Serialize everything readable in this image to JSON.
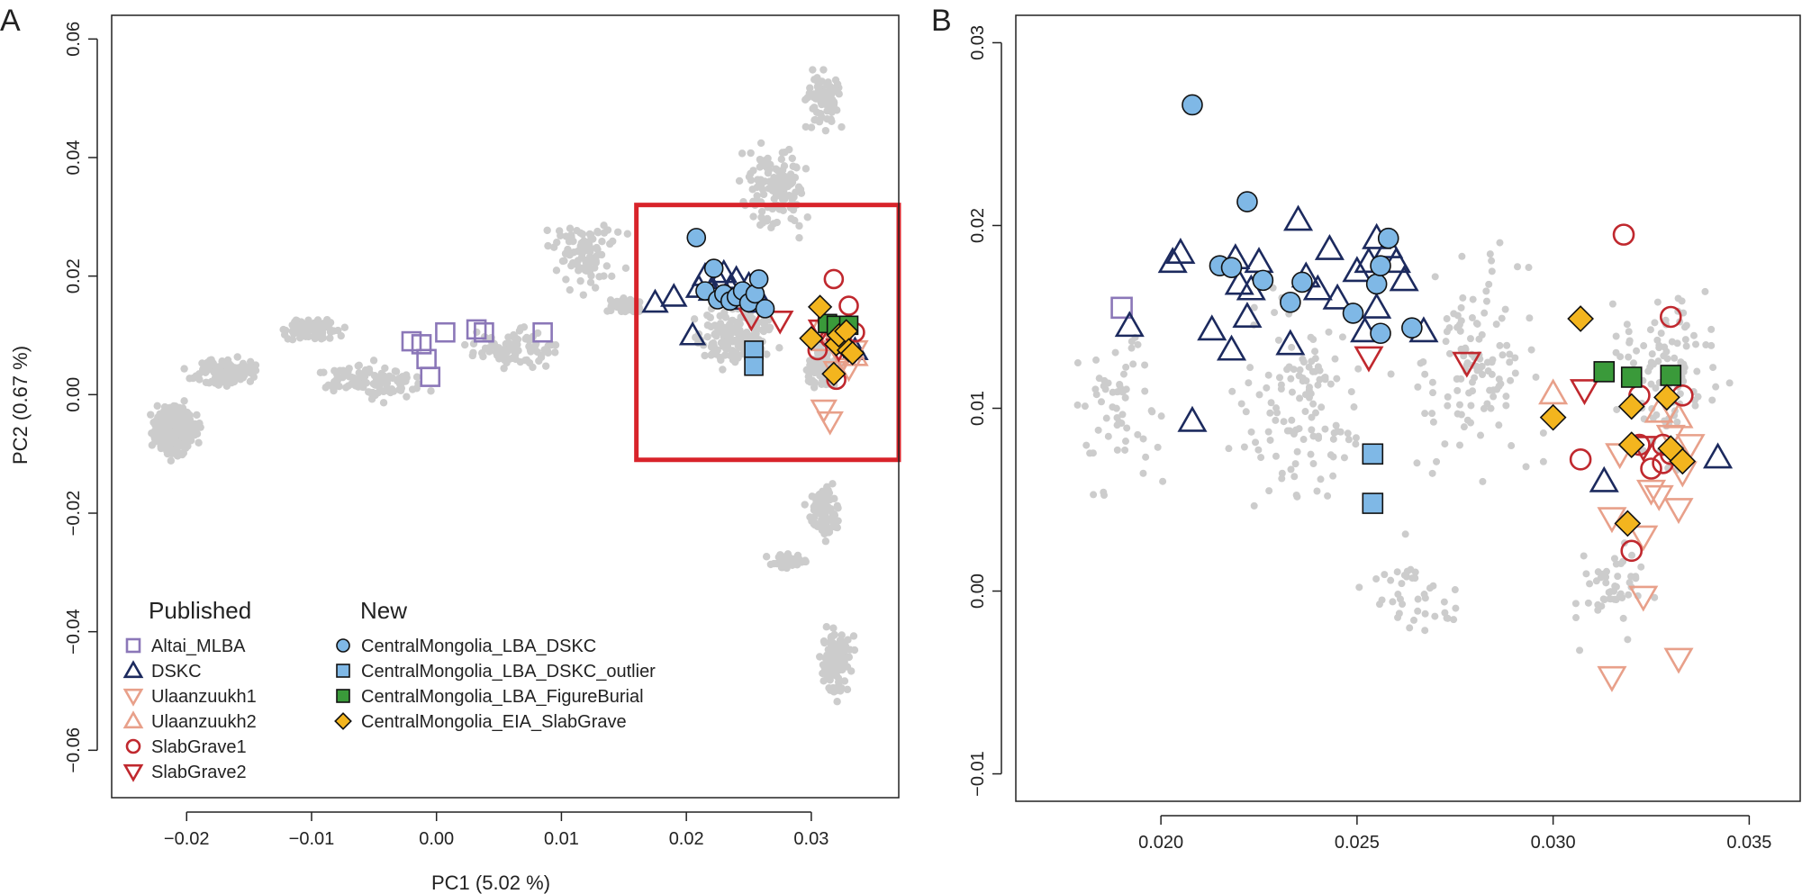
{
  "chart_data": [
    {
      "type": "scatter",
      "panel": "A",
      "xlabel": "PC1 (5.02 %)",
      "ylabel": "PC2 (0.67 %)",
      "xlim": [
        -0.026,
        0.037
      ],
      "ylim": [
        -0.068,
        0.064
      ],
      "xticks": [
        -0.02,
        -0.01,
        0.0,
        0.01,
        0.02,
        0.03
      ],
      "xtick_labels": [
        "−0.02",
        "−0.01",
        "0.00",
        "0.01",
        "0.02",
        "0.03"
      ],
      "yticks": [
        -0.06,
        -0.04,
        -0.02,
        0.0,
        0.02,
        0.04,
        0.06
      ],
      "ytick_labels": [
        "−0.06",
        "−0.04",
        "−0.02",
        "0.00",
        "0.02",
        "0.04",
        "0.06"
      ],
      "zoom_box": {
        "x": [
          0.016,
          0.037
        ],
        "y": [
          -0.011,
          0.032
        ]
      },
      "legend": {
        "published_title": "Published",
        "new_title": "New",
        "published": [
          {
            "label": "Altai_MLBA",
            "marker": "square-open",
            "color": "#8b77b8"
          },
          {
            "label": "DSKC",
            "marker": "triangle-up-open",
            "color": "#1c2a5e"
          },
          {
            "label": "Ulaanzuukh1",
            "marker": "triangle-down-open",
            "color": "#e8a08a"
          },
          {
            "label": "Ulaanzuukh2",
            "marker": "triangle-up-open",
            "color": "#e8a08a"
          },
          {
            "label": "SlabGrave1",
            "marker": "circle-open",
            "color": "#c0282e"
          },
          {
            "label": "SlabGrave2",
            "marker": "triangle-down-open",
            "color": "#c0282e"
          }
        ],
        "new": [
          {
            "label": "CentralMongolia_LBA_DSKC",
            "marker": "circle-filled",
            "color": "#7fb8e6"
          },
          {
            "label": "CentralMongolia_LBA_DSKC_outlier",
            "marker": "square-filled",
            "color": "#7fb8e6"
          },
          {
            "label": "CentralMongolia_LBA_FigureBurial",
            "marker": "square-filled",
            "color": "#3a9a3a"
          },
          {
            "label": "CentralMongolia_EIA_SlabGrave",
            "marker": "diamond-filled",
            "color": "#f3b51e"
          }
        ]
      },
      "background_color": "#cccccc",
      "series": [
        {
          "name": "Altai_MLBA",
          "points": [
            [
              -0.002,
              0.009
            ],
            [
              -0.0012,
              0.0085
            ],
            [
              -0.0008,
              0.006
            ],
            [
              -0.0005,
              0.003
            ],
            [
              0.0007,
              0.0105
            ],
            [
              0.0032,
              0.011
            ],
            [
              0.0038,
              0.0105
            ],
            [
              0.0085,
              0.0105
            ]
          ]
        },
        {
          "name": "DSKC",
          "points": [
            [
              0.0175,
              0.0155
            ],
            [
              0.019,
              0.0165
            ],
            [
              0.0205,
              0.01
            ],
            [
              0.021,
              0.018
            ],
            [
              0.0215,
              0.02
            ],
            [
              0.022,
              0.0175
            ],
            [
              0.0225,
              0.0195
            ],
            [
              0.023,
              0.0205
            ],
            [
              0.0235,
              0.018
            ],
            [
              0.024,
              0.0195
            ],
            [
              0.0245,
              0.016
            ],
            [
              0.025,
              0.0185
            ],
            [
              0.0255,
              0.0175
            ],
            [
              0.026,
              0.0155
            ],
            [
              0.0335,
              0.0075
            ]
          ]
        },
        {
          "name": "Ulaanzuukh1",
          "points": [
            [
              0.031,
              -0.0025
            ],
            [
              0.0315,
              -0.0045
            ],
            [
              0.032,
              0.004
            ],
            [
              0.0325,
              0.006
            ],
            [
              0.033,
              0.0045
            ],
            [
              0.0335,
              0.0075
            ]
          ]
        },
        {
          "name": "Ulaanzuukh2",
          "points": [
            [
              0.0305,
              0.0105
            ],
            [
              0.031,
              0.009
            ],
            [
              0.0335,
              0.0065
            ]
          ]
        },
        {
          "name": "SlabGrave1",
          "points": [
            [
              0.0318,
              0.0195
            ],
            [
              0.033,
              0.015
            ],
            [
              0.0305,
              0.0075
            ],
            [
              0.0315,
              0.0095
            ],
            [
              0.032,
              0.0025
            ],
            [
              0.0325,
              0.0085
            ],
            [
              0.0335,
              0.0105
            ]
          ]
        },
        {
          "name": "SlabGrave2",
          "points": [
            [
              0.0252,
              0.013
            ],
            [
              0.0275,
              0.0125
            ],
            [
              0.0308,
              0.011
            ],
            [
              0.0322,
              0.0078
            ]
          ]
        },
        {
          "name": "CentralMongolia_LBA_DSKC",
          "points": [
            [
              0.0208,
              0.0265
            ],
            [
              0.0215,
              0.0175
            ],
            [
              0.0222,
              0.0213
            ],
            [
              0.0225,
              0.016
            ],
            [
              0.023,
              0.017
            ],
            [
              0.0235,
              0.0158
            ],
            [
              0.024,
              0.0165
            ],
            [
              0.0245,
              0.0175
            ],
            [
              0.025,
              0.0155
            ],
            [
              0.0255,
              0.017
            ],
            [
              0.0258,
              0.0195
            ],
            [
              0.0263,
              0.0145
            ]
          ]
        },
        {
          "name": "CentralMongolia_LBA_DSKC_outlier",
          "points": [
            [
              0.0254,
              0.0075
            ],
            [
              0.0254,
              0.0048
            ]
          ]
        },
        {
          "name": "CentralMongolia_LBA_FigureBurial",
          "points": [
            [
              0.0313,
              0.012
            ],
            [
              0.032,
              0.0117
            ],
            [
              0.033,
              0.0117
            ]
          ]
        },
        {
          "name": "CentralMongolia_EIA_SlabGrave",
          "points": [
            [
              0.0307,
              0.0148
            ],
            [
              0.03,
              0.0095
            ],
            [
              0.032,
              0.0085
            ],
            [
              0.0322,
              0.01
            ],
            [
              0.0328,
              0.0107
            ],
            [
              0.033,
              0.0075
            ],
            [
              0.0318,
              0.0035
            ],
            [
              0.0333,
              0.007
            ]
          ]
        }
      ]
    },
    {
      "type": "scatter",
      "panel": "B",
      "xlabel": "",
      "ylabel": "",
      "xlim": [
        0.0163,
        0.0363
      ],
      "ylim": [
        -0.0115,
        0.0315
      ],
      "xticks": [
        0.02,
        0.025,
        0.03,
        0.035
      ],
      "xtick_labels": [
        "0.020",
        "0.025",
        "0.030",
        "0.035"
      ],
      "yticks": [
        -0.01,
        0.0,
        0.01,
        0.02,
        0.03
      ],
      "ytick_labels": [
        "−0.01",
        "0.00",
        "0.01",
        "0.02",
        "0.03"
      ],
      "background_color": "#cccccc",
      "series": [
        {
          "name": "Altai_MLBA",
          "points": [
            [
              0.019,
              0.0155
            ]
          ]
        },
        {
          "name": "DSKC",
          "points": [
            [
              0.0192,
              0.0145
            ],
            [
              0.0203,
              0.018
            ],
            [
              0.0205,
              0.0185
            ],
            [
              0.0208,
              0.0093
            ],
            [
              0.0213,
              0.0143
            ],
            [
              0.0218,
              0.0132
            ],
            [
              0.0219,
              0.0182
            ],
            [
              0.022,
              0.0168
            ],
            [
              0.0222,
              0.015
            ],
            [
              0.0223,
              0.0165
            ],
            [
              0.0225,
              0.018
            ],
            [
              0.0233,
              0.0135
            ],
            [
              0.0235,
              0.0203
            ],
            [
              0.0237,
              0.0172
            ],
            [
              0.024,
              0.0165
            ],
            [
              0.0243,
              0.0187
            ],
            [
              0.0245,
              0.016
            ],
            [
              0.025,
              0.0175
            ],
            [
              0.0252,
              0.0142
            ],
            [
              0.0253,
              0.018
            ],
            [
              0.0255,
              0.0193
            ],
            [
              0.0255,
              0.0155
            ],
            [
              0.0258,
              0.0188
            ],
            [
              0.026,
              0.018
            ],
            [
              0.0262,
              0.017
            ],
            [
              0.0267,
              0.0142
            ],
            [
              0.0313,
              0.006
            ],
            [
              0.0342,
              0.0073
            ]
          ]
        },
        {
          "name": "Ulaanzuukh1",
          "points": [
            [
              0.0317,
              0.0075
            ],
            [
              0.0315,
              0.004
            ],
            [
              0.0323,
              0.003
            ],
            [
              0.0325,
              0.0055
            ],
            [
              0.0327,
              0.0052
            ],
            [
              0.033,
              0.0085
            ],
            [
              0.0332,
              0.0045
            ],
            [
              0.0333,
              0.0065
            ],
            [
              0.0335,
              0.008
            ],
            [
              0.0323,
              -0.0003
            ],
            [
              0.0332,
              -0.0037
            ],
            [
              0.0315,
              -0.0047
            ]
          ]
        },
        {
          "name": "Ulaanzuukh2",
          "points": [
            [
              0.03,
              0.0108
            ],
            [
              0.0327,
              0.0098
            ],
            [
              0.0332,
              0.0095
            ]
          ]
        },
        {
          "name": "SlabGrave1",
          "points": [
            [
              0.0318,
              0.0195
            ],
            [
              0.033,
              0.015
            ],
            [
              0.0307,
              0.0072
            ],
            [
              0.0322,
              0.0107
            ],
            [
              0.0333,
              0.0107
            ],
            [
              0.0322,
              0.008
            ],
            [
              0.0328,
              0.008
            ],
            [
              0.0325,
              0.0067
            ],
            [
              0.0328,
              0.007
            ],
            [
              0.033,
              0.0075
            ],
            [
              0.032,
              0.0022
            ]
          ]
        },
        {
          "name": "SlabGrave2",
          "points": [
            [
              0.0253,
              0.0128
            ],
            [
              0.0278,
              0.0125
            ],
            [
              0.0308,
              0.011
            ],
            [
              0.0323,
              0.0079
            ]
          ]
        },
        {
          "name": "CentralMongolia_LBA_DSKC",
          "points": [
            [
              0.0208,
              0.0266
            ],
            [
              0.0222,
              0.0213
            ],
            [
              0.0215,
              0.0178
            ],
            [
              0.0218,
              0.0177
            ],
            [
              0.0226,
              0.017
            ],
            [
              0.0233,
              0.0158
            ],
            [
              0.0236,
              0.0169
            ],
            [
              0.0249,
              0.0152
            ],
            [
              0.0255,
              0.0168
            ],
            [
              0.0256,
              0.0178
            ],
            [
              0.0258,
              0.0193
            ],
            [
              0.0256,
              0.0141
            ],
            [
              0.0264,
              0.0144
            ]
          ]
        },
        {
          "name": "CentralMongolia_LBA_DSKC_outlier",
          "points": [
            [
              0.0254,
              0.0075
            ],
            [
              0.0254,
              0.0048
            ]
          ]
        },
        {
          "name": "CentralMongolia_LBA_FigureBurial",
          "points": [
            [
              0.0313,
              0.012
            ],
            [
              0.032,
              0.0117
            ],
            [
              0.033,
              0.0118
            ]
          ]
        },
        {
          "name": "CentralMongolia_EIA_SlabGrave",
          "points": [
            [
              0.0307,
              0.0149
            ],
            [
              0.03,
              0.0095
            ],
            [
              0.032,
              0.0101
            ],
            [
              0.0329,
              0.0106
            ],
            [
              0.032,
              0.008
            ],
            [
              0.033,
              0.0078
            ],
            [
              0.0333,
              0.0071
            ],
            [
              0.0319,
              0.0037
            ]
          ]
        }
      ]
    }
  ]
}
